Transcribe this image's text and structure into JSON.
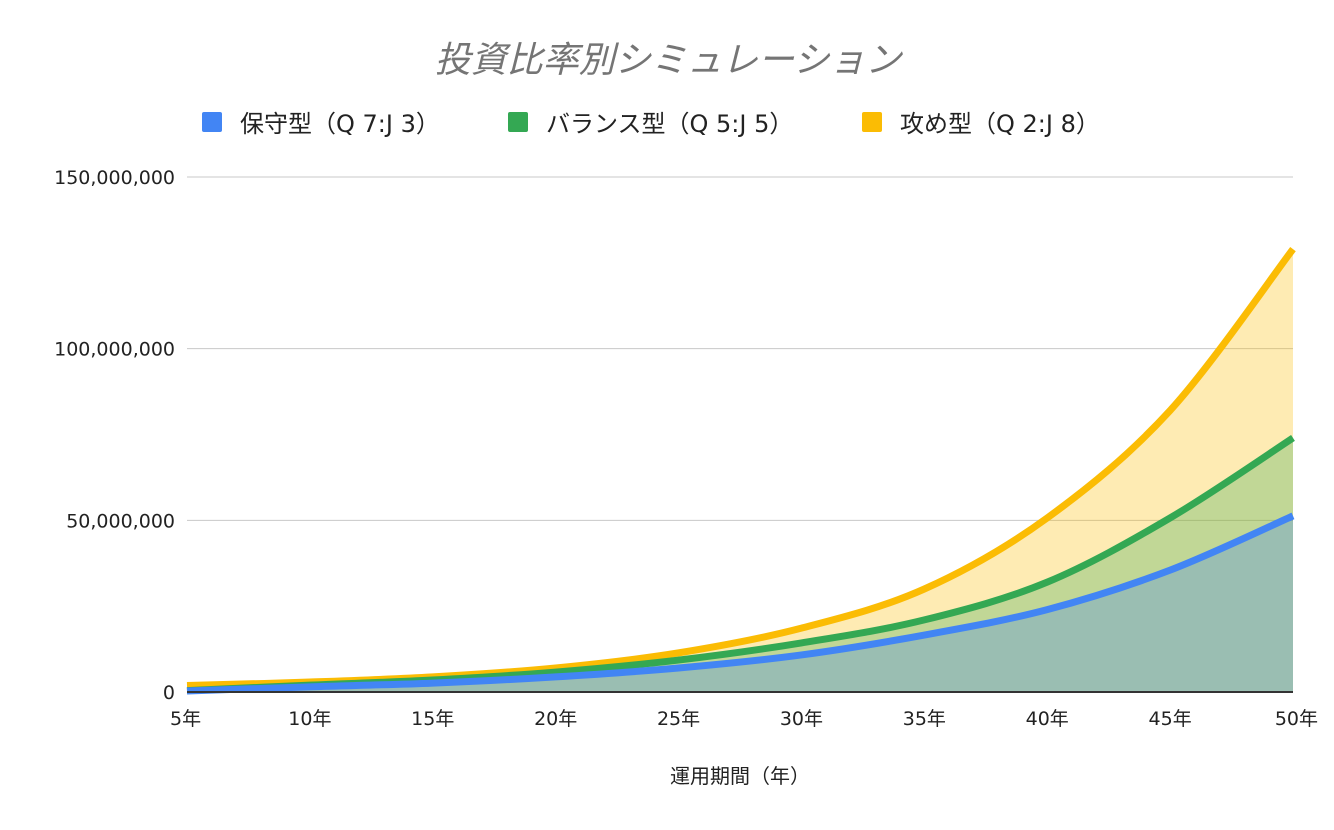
{
  "chart_data": {
    "type": "area",
    "title": "投資比率別シミュレーション",
    "xlabel": "運用期間（年）",
    "ylabel": "",
    "categories": [
      "5年",
      "10年",
      "15年",
      "20年",
      "25年",
      "30年",
      "35年",
      "40年",
      "45年",
      "50年"
    ],
    "ylim": [
      0,
      150000000
    ],
    "yticks": [
      0,
      50000000,
      100000000,
      150000000
    ],
    "ytick_labels": [
      "0",
      "50,000,000",
      "100,000,000",
      "150,000,000"
    ],
    "grid": true,
    "legend_position": "top",
    "series": [
      {
        "name": "保守型（Q 7:J 3）",
        "color": "#4285f4",
        "values": [
          300000,
          1500000,
          2600000,
          4400000,
          7000000,
          10800000,
          16600000,
          24000000,
          35500000,
          51300000
        ]
      },
      {
        "name": "バランス型（Q 5:J 5）",
        "color": "#34a853",
        "values": [
          400000,
          2000000,
          3500000,
          5800000,
          9300000,
          14300000,
          21000000,
          32000000,
          50700000,
          74000000
        ]
      },
      {
        "name": "攻め型（Q 2:J 8）",
        "color": "#fbbc04",
        "values": [
          1900000,
          2900000,
          4400000,
          7000000,
          11400000,
          18600000,
          30000000,
          50700000,
          82000000,
          129000000
        ]
      }
    ]
  }
}
